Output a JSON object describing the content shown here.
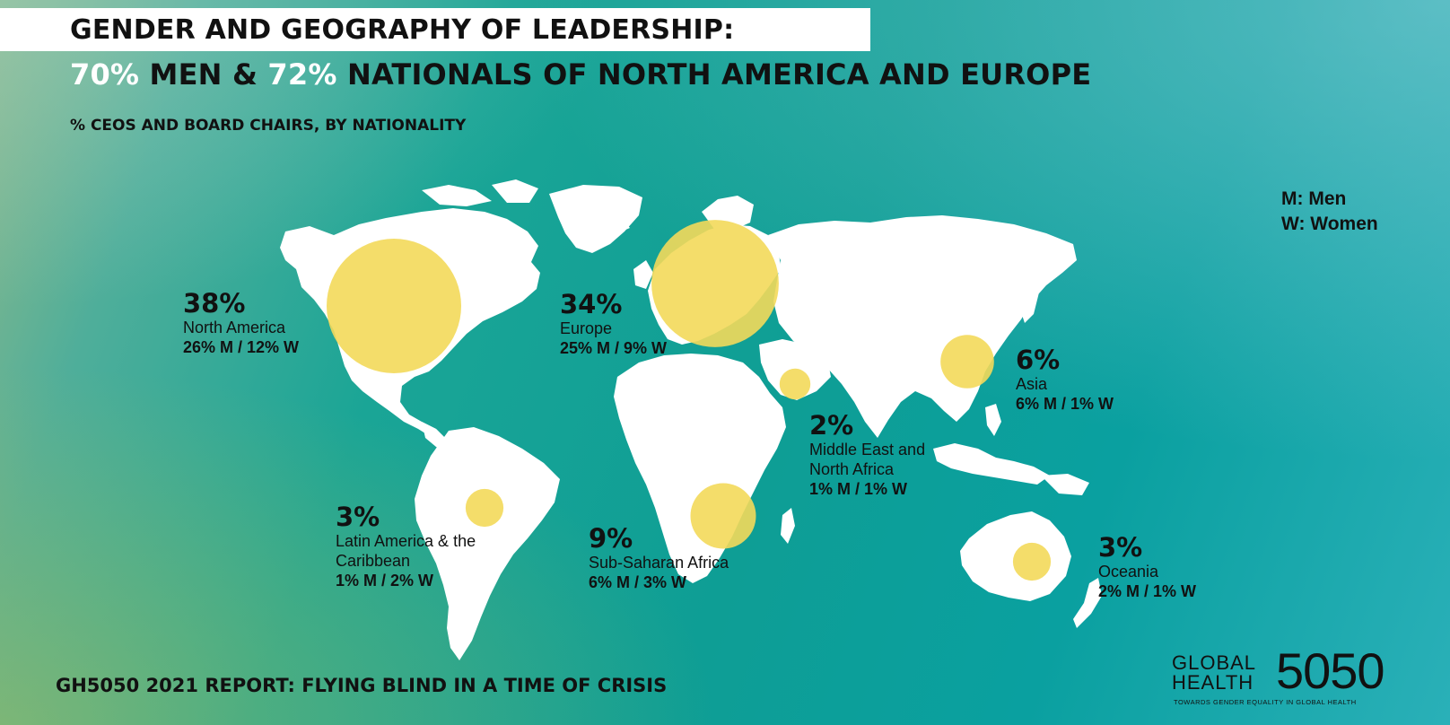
{
  "header": {
    "title_line1": "GENDER AND GEOGRAPHY OF LEADERSHIP:",
    "title_line2": {
      "part1": "70%",
      "part2": " MEN & ",
      "part3": "72%",
      "part4": " NATIONALS OF NORTH AMERICA AND EUROPE"
    },
    "subtitle": "% CEOS AND BOARD CHAIRS, BY NATIONALITY"
  },
  "legend": {
    "men": "M: Men",
    "women": "W: Women"
  },
  "colors": {
    "bubble": "#f3d95a",
    "land": "#ffffff",
    "text": "#111111",
    "highlight": "#ffffff"
  },
  "regions": [
    {
      "pct": "38%",
      "name": "North America",
      "split": "26% M / 12% W",
      "value": 38
    },
    {
      "pct": "34%",
      "name": "Europe",
      "split": "25% M / 9% W",
      "value": 34
    },
    {
      "pct": "6%",
      "name": "Asia",
      "split": "6% M / 1% W",
      "value": 6
    },
    {
      "pct": "2%",
      "name_line1": "Middle East and",
      "name_line2": "North Africa",
      "split": "1% M / 1% W",
      "value": 2
    },
    {
      "pct": "3%",
      "name_line1": "Latin America & the",
      "name_line2": "Caribbean",
      "split": "1% M / 2% W",
      "value": 3
    },
    {
      "pct": "9%",
      "name": "Sub-Saharan Africa",
      "split": "6% M / 3% W",
      "value": 9
    },
    {
      "pct": "3%",
      "name": "Oceania",
      "split": "2% M / 1% W",
      "value": 3
    }
  ],
  "footer": "GH5050 2021 REPORT: FLYING BLIND IN A TIME OF CRISIS",
  "logo": {
    "line1": "GLOBAL",
    "line2": "HEALTH",
    "number": "5050",
    "tagline": "TOWARDS GENDER EQUALITY IN GLOBAL HEALTH"
  }
}
